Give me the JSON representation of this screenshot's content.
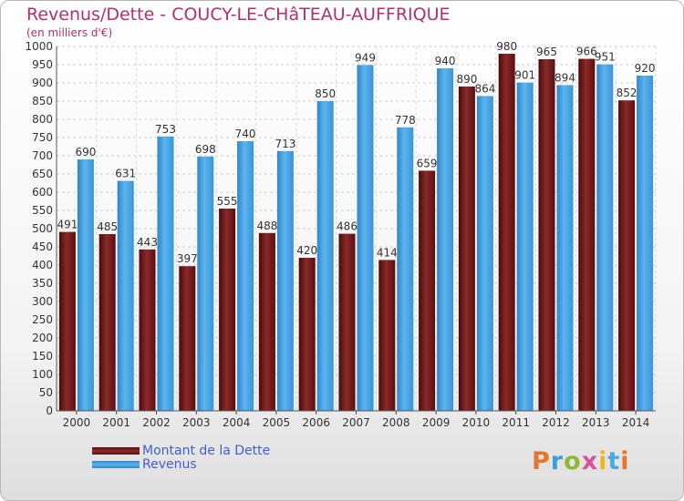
{
  "chart_data": {
    "type": "bar",
    "title": "Revenus/Dette - COUCY-LE-CHâTEAU-AUFFRIQUE",
    "subtitle": "(en milliers d'€)",
    "categories": [
      "2000",
      "2001",
      "2002",
      "2003",
      "2004",
      "2005",
      "2006",
      "2007",
      "2008",
      "2009",
      "2010",
      "2011",
      "2012",
      "2013",
      "2014"
    ],
    "series": [
      {
        "name": "Montant de la Dette",
        "color": "#7a1a1a",
        "values": [
          491,
          485,
          443,
          397,
          555,
          488,
          420,
          486,
          414,
          659,
          890,
          980,
          965,
          966,
          852
        ]
      },
      {
        "name": "Revenus",
        "color": "#3d9ee0",
        "values": [
          690,
          631,
          753,
          698,
          740,
          713,
          850,
          949,
          778,
          940,
          864,
          901,
          894,
          951,
          920
        ]
      }
    ],
    "ylim": [
      0,
      1000
    ],
    "yticks": [
      0,
      50,
      100,
      150,
      200,
      250,
      300,
      350,
      400,
      450,
      500,
      550,
      600,
      650,
      700,
      750,
      800,
      850,
      900,
      950,
      1000
    ],
    "grid": true,
    "legend": "bottom-left"
  },
  "logo": {
    "text": "Proxiti",
    "colors": [
      "#e8742a",
      "#3aa0d8",
      "#8fb83a",
      "#d94f9a",
      "#f2b51e",
      "#4aa8e0",
      "#e8742a"
    ]
  }
}
